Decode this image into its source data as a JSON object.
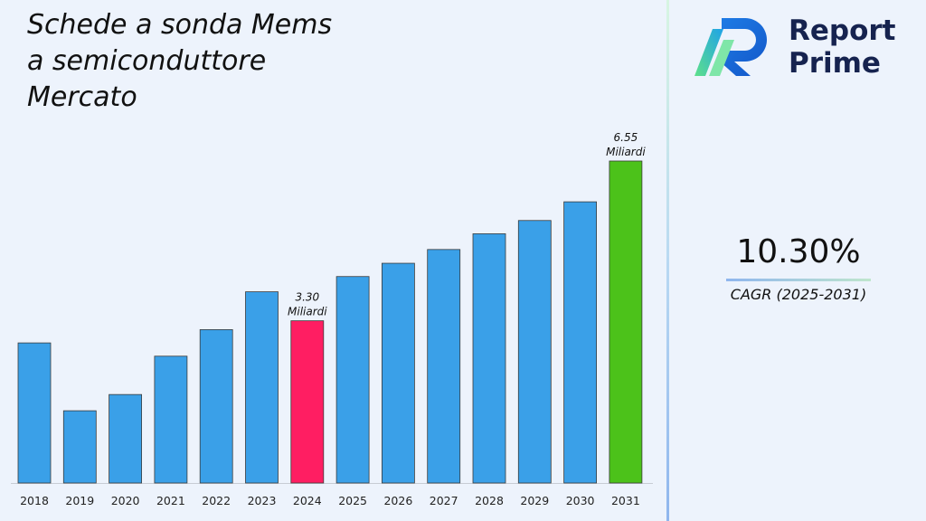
{
  "title_lines": [
    "Schede a sonda Mems",
    "a semiconduttore",
    "Mercato"
  ],
  "logo": {
    "line1": "Report",
    "line2": "Prime",
    "icon": "report-prime-logo-icon"
  },
  "cagr": {
    "value": "10.30%",
    "label": "CAGR (2025-2031)"
  },
  "colors": {
    "bar_default": "#3aa0e8",
    "bar_highlight_2024": "#ff1e62",
    "bar_highlight_2031": "#4cc21a",
    "background": "#edf3fc"
  },
  "chart_data": {
    "type": "bar",
    "categories": [
      "2018",
      "2019",
      "2020",
      "2021",
      "2022",
      "2023",
      "2024",
      "2025",
      "2026",
      "2027",
      "2028",
      "2029",
      "2030",
      "2031"
    ],
    "values": [
      2.85,
      1.47,
      1.8,
      2.58,
      3.12,
      3.89,
      3.3,
      4.2,
      4.47,
      4.75,
      5.07,
      5.34,
      5.72,
      6.55
    ],
    "value_labels": {
      "2024": [
        "3.30",
        "Miliardi"
      ],
      "2031": [
        "6.55",
        "Miliardi"
      ]
    },
    "highlight": {
      "2024": "bar_highlight_2024",
      "2031": "bar_highlight_2031"
    },
    "ylim": [
      0,
      6.55
    ],
    "grid": false,
    "legend": "none",
    "xlabel": "",
    "ylabel": ""
  }
}
